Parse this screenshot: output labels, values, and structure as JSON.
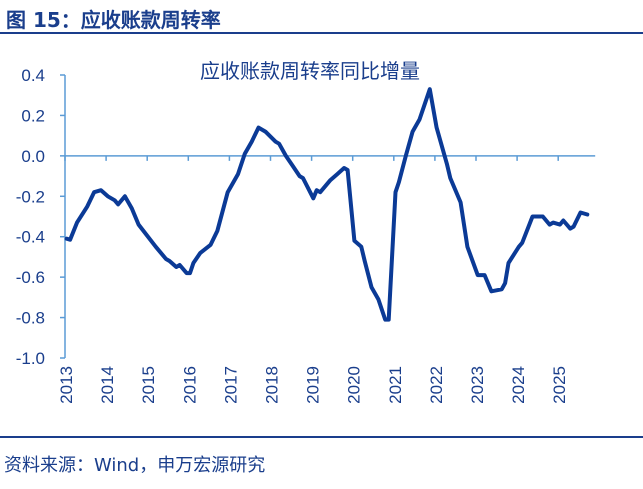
{
  "figure_title": "图 15：应收账款周转率",
  "source": "资料来源：Wind，申万宏源研究",
  "colors": {
    "line": "#0b3a96",
    "axis": "#5b9bd5",
    "text": "#1a3e8c"
  },
  "chart_data": {
    "type": "line",
    "title": "应收账款周转率同比增量",
    "xlabel": "",
    "ylabel": "",
    "ylim": [
      -1.0,
      0.4
    ],
    "yticks": [
      "0.4",
      "0.2",
      "0.0",
      "-0.2",
      "-0.4",
      "-0.6",
      "-0.8",
      "-1.0"
    ],
    "xticks": [
      "2013",
      "2014",
      "2015",
      "2016",
      "2017",
      "2018",
      "2019",
      "2020",
      "2021",
      "2022",
      "2023",
      "2024",
      "2025"
    ],
    "grid": false,
    "series": [
      {
        "x": [
          "2013-01",
          "2013-02",
          "2013-04",
          "2013-07",
          "2013-09",
          "2013-11",
          "2014-01",
          "2014-03",
          "2014-04",
          "2014-06",
          "2014-08",
          "2014-10",
          "2015-03",
          "2015-06",
          "2015-07",
          "2015-09",
          "2015-10",
          "2015-12",
          "2016-01",
          "2016-02",
          "2016-04",
          "2016-07",
          "2016-09",
          "2016-12",
          "2017-03",
          "2017-05",
          "2017-07",
          "2017-09",
          "2017-11",
          "2018-02",
          "2018-03",
          "2018-05",
          "2018-07",
          "2018-09",
          "2018-10",
          "2019-01",
          "2019-02",
          "2019-03",
          "2019-06",
          "2019-08",
          "2019-10",
          "2019-11",
          "2020-01",
          "2020-03",
          "2020-04",
          "2020-06",
          "2020-08",
          "2020-10",
          "2020-11",
          "2021-01",
          "2021-02",
          "2021-04",
          "2021-06",
          "2021-08",
          "2021-11",
          "2022-01",
          "2022-04",
          "2022-05",
          "2022-08",
          "2022-10",
          "2023-01",
          "2023-03",
          "2023-05",
          "2023-08",
          "2023-09",
          "2023-10",
          "2024-01",
          "2024-02",
          "2024-05",
          "2024-08",
          "2024-10",
          "2024-11",
          "2025-01",
          "2025-02",
          "2025-04",
          "2025-05",
          "2025-07",
          "2025-09"
        ],
        "y": [
          -0.41,
          -0.415,
          -0.33,
          -0.25,
          -0.18,
          -0.17,
          -0.2,
          -0.22,
          -0.24,
          -0.2,
          -0.26,
          -0.34,
          -0.45,
          -0.51,
          -0.52,
          -0.55,
          -0.54,
          -0.58,
          -0.58,
          -0.53,
          -0.48,
          -0.44,
          -0.37,
          -0.18,
          -0.09,
          0.01,
          0.07,
          0.14,
          0.12,
          0.07,
          0.06,
          0.0,
          -0.05,
          -0.1,
          -0.11,
          -0.21,
          -0.17,
          -0.18,
          -0.12,
          -0.09,
          -0.06,
          -0.07,
          -0.42,
          -0.45,
          -0.52,
          -0.65,
          -0.71,
          -0.81,
          -0.81,
          -0.18,
          -0.13,
          0.0,
          0.12,
          0.18,
          0.33,
          0.14,
          -0.04,
          -0.11,
          -0.23,
          -0.45,
          -0.59,
          -0.59,
          -0.67,
          -0.66,
          -0.63,
          -0.53,
          -0.45,
          -0.43,
          -0.3,
          -0.3,
          -0.34,
          -0.33,
          -0.34,
          -0.32,
          -0.36,
          -0.35,
          -0.28,
          -0.29
        ]
      }
    ]
  }
}
